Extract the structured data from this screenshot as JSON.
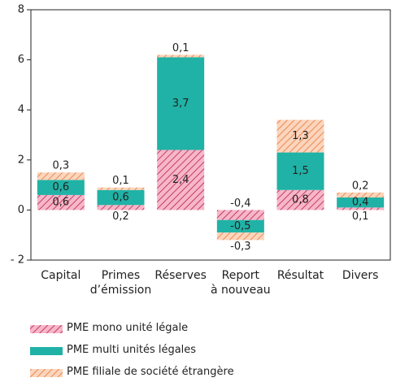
{
  "chart_data": {
    "type": "stacked-bar",
    "categories": [
      "Capital",
      "Primes\nd’émission",
      "Réserves",
      "Report\nà nouveau",
      "Résultat",
      "Divers"
    ],
    "series": [
      {
        "name": "PME mono unité légale",
        "color": "#f7b6c9",
        "hatch": "#b5224a",
        "values": [
          0.6,
          0.2,
          2.4,
          -0.4,
          0.8,
          0.1
        ],
        "value_labels": [
          "0,6",
          "0,2",
          "2,4",
          "-0,4",
          "0,8",
          "0,1"
        ]
      },
      {
        "name": "PME multi unités légales",
        "color": "#20b2a6",
        "values": [
          0.6,
          0.6,
          3.7,
          -0.5,
          1.5,
          0.4
        ],
        "value_labels": [
          "0,6",
          "0,6",
          "3,7",
          "-0,5",
          "1,5",
          "0,4"
        ]
      },
      {
        "name": "PME filiale de société étrangère",
        "color": "#fcd5bd",
        "hatch": "#e57a3c",
        "values": [
          0.3,
          0.1,
          0.1,
          -0.3,
          1.3,
          0.2
        ],
        "value_labels": [
          "0,3",
          "0,1",
          "0,1",
          "-0,3",
          "1,3",
          "0,2"
        ]
      }
    ],
    "ylim": [
      -2,
      8
    ],
    "yticks": [
      {
        "value": -2,
        "label": "- 2"
      },
      0,
      2,
      4,
      6,
      8
    ]
  }
}
